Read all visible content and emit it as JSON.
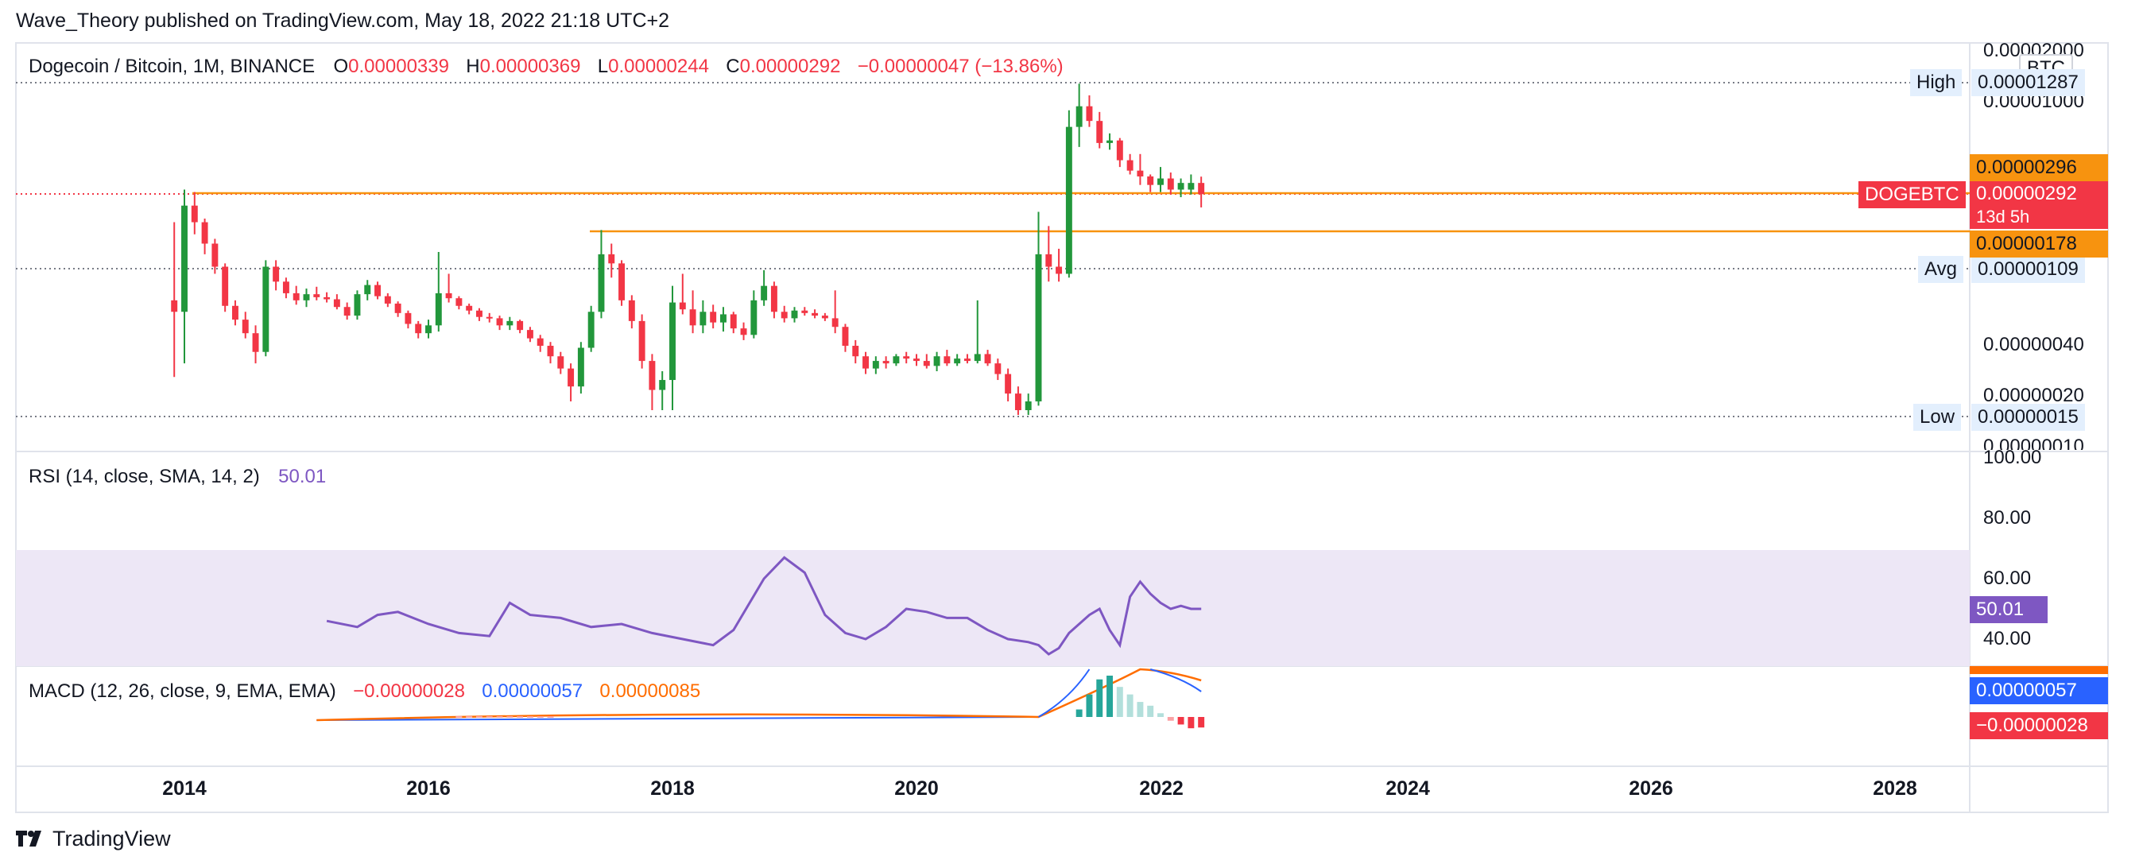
{
  "header": {
    "published": "Wave_Theory published on TradingView.com, May 18, 2022 21:18 UTC+2"
  },
  "main_legend": {
    "symbol": "Dogecoin / Bitcoin, 1M, BINANCE",
    "o_label": "O",
    "o_value": "0.00000339",
    "h_label": "H",
    "h_value": "0.00000369",
    "l_label": "L",
    "l_value": "0.00000244",
    "c_label": "C",
    "c_value": "0.00000292",
    "change": "−0.00000047 (−13.86%)"
  },
  "price_axis": {
    "currency": "BTC",
    "ticks": [
      "0.00002000",
      "0.00001000",
      "0.00000040",
      "0.00000020",
      "0.00000010"
    ],
    "high_label": "High",
    "high_value": "0.00001287",
    "avg_label": "Avg",
    "avg_value": "0.00000109",
    "low_label": "Low",
    "low_value": "0.00000015",
    "level_upper": "0.00000296",
    "level_lower": "0.00000178",
    "symbol_tag": "DOGEBTC",
    "last_price": "0.00000292",
    "countdown": "13d 5h"
  },
  "rsi": {
    "label": "RSI (14, close, SMA, 14, 2)",
    "value": "50.01",
    "ticks": [
      "100.00",
      "80.00",
      "60.00",
      "40.00"
    ]
  },
  "macd": {
    "label": "MACD (12, 26, close, 9, EMA, EMA)",
    "hist_value": "−0.00000028",
    "macd_value": "0.00000057",
    "signal_value": "0.00000085",
    "axis_macd": "0.00000057",
    "axis_hist": "−0.00000028"
  },
  "x_axis": {
    "ticks": [
      "2014",
      "2016",
      "2018",
      "2020",
      "2022",
      "2024",
      "2026",
      "2028"
    ]
  },
  "footer": {
    "brand": "TradingView"
  },
  "colors": {
    "up": "#22973b",
    "down": "#f23645",
    "orange": "#f7930f",
    "rsi": "#7e57c2",
    "macd": "#2962ff",
    "signal": "#ff6d00",
    "rsi_band": "#ede7f6"
  },
  "chart_data": {
    "type": "candlestick",
    "interval": "1M",
    "y_scale": "log",
    "x_range": [
      "2013-12",
      "2028-12"
    ],
    "ylim": [
      1e-07,
      2e-05
    ],
    "levels": [
      2.96e-06,
      1.78e-06
    ],
    "candles": [
      {
        "date": "2013-12",
        "o": 7e-07,
        "h": 2e-06,
        "l": 2.5e-07,
        "c": 6e-07
      },
      {
        "date": "2014-01",
        "o": 6e-07,
        "h": 3.1e-06,
        "l": 3e-07,
        "c": 2.5e-06
      },
      {
        "date": "2014-02",
        "o": 2.5e-06,
        "h": 3e-06,
        "l": 1.7e-06,
        "c": 2e-06
      },
      {
        "date": "2014-03",
        "o": 2e-06,
        "h": 2.1e-06,
        "l": 1.3e-06,
        "c": 1.5e-06
      },
      {
        "date": "2014-04",
        "o": 1.5e-06,
        "h": 1.6e-06,
        "l": 1e-06,
        "c": 1.1e-06
      },
      {
        "date": "2014-05",
        "o": 1.1e-06,
        "h": 1.15e-06,
        "l": 6e-07,
        "c": 6.5e-07
      },
      {
        "date": "2014-06",
        "o": 6.5e-07,
        "h": 7e-07,
        "l": 5e-07,
        "c": 5.4e-07
      },
      {
        "date": "2014-07",
        "o": 5.4e-07,
        "h": 6e-07,
        "l": 4.2e-07,
        "c": 4.5e-07
      },
      {
        "date": "2014-08",
        "o": 4.5e-07,
        "h": 5e-07,
        "l": 3e-07,
        "c": 3.5e-07
      },
      {
        "date": "2014-09",
        "o": 3.5e-07,
        "h": 1.2e-06,
        "l": 3.3e-07,
        "c": 1.1e-06
      },
      {
        "date": "2014-10",
        "o": 1.1e-06,
        "h": 1.2e-06,
        "l": 8e-07,
        "c": 9e-07
      },
      {
        "date": "2014-11",
        "o": 9e-07,
        "h": 9.5e-07,
        "l": 7.2e-07,
        "c": 7.7e-07
      },
      {
        "date": "2014-12",
        "o": 7.7e-07,
        "h": 8.5e-07,
        "l": 6.6e-07,
        "c": 7e-07
      },
      {
        "date": "2015-01",
        "o": 7e-07,
        "h": 8.2e-07,
        "l": 6.4e-07,
        "c": 7.6e-07
      },
      {
        "date": "2015-02",
        "o": 7.6e-07,
        "h": 8.4e-07,
        "l": 7e-07,
        "c": 7.3e-07
      },
      {
        "date": "2015-03",
        "o": 7.3e-07,
        "h": 7.8e-07,
        "l": 6.8e-07,
        "c": 7.1e-07
      },
      {
        "date": "2015-04",
        "o": 7.1e-07,
        "h": 7.6e-07,
        "l": 6.2e-07,
        "c": 6.4e-07
      },
      {
        "date": "2015-05",
        "o": 6.4e-07,
        "h": 6.8e-07,
        "l": 5.4e-07,
        "c": 5.7e-07
      },
      {
        "date": "2015-06",
        "o": 5.7e-07,
        "h": 8e-07,
        "l": 5.4e-07,
        "c": 7.6e-07
      },
      {
        "date": "2015-07",
        "o": 7.6e-07,
        "h": 9.2e-07,
        "l": 7e-07,
        "c": 8.6e-07
      },
      {
        "date": "2015-08",
        "o": 8.6e-07,
        "h": 9e-07,
        "l": 7.1e-07,
        "c": 7.4e-07
      },
      {
        "date": "2015-09",
        "o": 7.4e-07,
        "h": 7.7e-07,
        "l": 6.4e-07,
        "c": 6.7e-07
      },
      {
        "date": "2015-10",
        "o": 6.7e-07,
        "h": 6.9e-07,
        "l": 5.6e-07,
        "c": 5.9e-07
      },
      {
        "date": "2015-11",
        "o": 5.9e-07,
        "h": 6.1e-07,
        "l": 4.8e-07,
        "c": 5.1e-07
      },
      {
        "date": "2015-12",
        "o": 5.1e-07,
        "h": 5.3e-07,
        "l": 4.2e-07,
        "c": 4.5e-07
      },
      {
        "date": "2016-01",
        "o": 4.5e-07,
        "h": 5.4e-07,
        "l": 4.2e-07,
        "c": 5e-07
      },
      {
        "date": "2016-02",
        "o": 5e-07,
        "h": 1.34e-06,
        "l": 4.6e-07,
        "c": 7.7e-07
      },
      {
        "date": "2016-03",
        "o": 7.7e-07,
        "h": 1e-06,
        "l": 6.8e-07,
        "c": 7.2e-07
      },
      {
        "date": "2016-04",
        "o": 7.2e-07,
        "h": 7.4e-07,
        "l": 6.2e-07,
        "c": 6.5e-07
      },
      {
        "date": "2016-05",
        "o": 6.5e-07,
        "h": 6.7e-07,
        "l": 5.8e-07,
        "c": 6.1e-07
      },
      {
        "date": "2016-06",
        "o": 6.1e-07,
        "h": 6.3e-07,
        "l": 5.3e-07,
        "c": 5.6e-07
      },
      {
        "date": "2016-07",
        "o": 5.6e-07,
        "h": 5.9e-07,
        "l": 5.2e-07,
        "c": 5.5e-07
      },
      {
        "date": "2016-08",
        "o": 5.5e-07,
        "h": 5.7e-07,
        "l": 4.7e-07,
        "c": 5e-07
      },
      {
        "date": "2016-09",
        "o": 5e-07,
        "h": 5.6e-07,
        "l": 4.7e-07,
        "c": 5.3e-07
      },
      {
        "date": "2016-10",
        "o": 5.3e-07,
        "h": 5.4e-07,
        "l": 4.5e-07,
        "c": 4.7e-07
      },
      {
        "date": "2016-11",
        "o": 4.7e-07,
        "h": 4.9e-07,
        "l": 4e-07,
        "c": 4.2e-07
      },
      {
        "date": "2016-12",
        "o": 4.2e-07,
        "h": 4.4e-07,
        "l": 3.5e-07,
        "c": 3.8e-07
      },
      {
        "date": "2017-01",
        "o": 3.8e-07,
        "h": 4e-07,
        "l": 3e-07,
        "c": 3.3e-07
      },
      {
        "date": "2017-02",
        "o": 3.3e-07,
        "h": 3.5e-07,
        "l": 2.6e-07,
        "c": 2.8e-07
      },
      {
        "date": "2017-03",
        "o": 2.8e-07,
        "h": 3e-07,
        "l": 1.8e-07,
        "c": 2.2e-07
      },
      {
        "date": "2017-04",
        "o": 2.2e-07,
        "h": 4e-07,
        "l": 2e-07,
        "c": 3.7e-07
      },
      {
        "date": "2017-05",
        "o": 3.7e-07,
        "h": 6.5e-07,
        "l": 3.5e-07,
        "c": 6e-07
      },
      {
        "date": "2017-06",
        "o": 6e-07,
        "h": 1.8e-06,
        "l": 5.5e-07,
        "c": 1.3e-06
      },
      {
        "date": "2017-07",
        "o": 1.3e-06,
        "h": 1.5e-06,
        "l": 9.5e-07,
        "c": 1.15e-06
      },
      {
        "date": "2017-08",
        "o": 1.15e-06,
        "h": 1.2e-06,
        "l": 6.5e-07,
        "c": 7e-07
      },
      {
        "date": "2017-09",
        "o": 7e-07,
        "h": 7.5e-07,
        "l": 4.8e-07,
        "c": 5.3e-07
      },
      {
        "date": "2017-10",
        "o": 5.3e-07,
        "h": 5.8e-07,
        "l": 2.8e-07,
        "c": 3.1e-07
      },
      {
        "date": "2017-11",
        "o": 3.1e-07,
        "h": 3.4e-07,
        "l": 1.6e-07,
        "c": 2.1e-07
      },
      {
        "date": "2017-12",
        "o": 2.1e-07,
        "h": 2.7e-07,
        "l": 1.6e-07,
        "c": 2.4e-07
      },
      {
        "date": "2018-01",
        "o": 2.4e-07,
        "h": 8.5e-07,
        "l": 1.6e-07,
        "c": 6.8e-07
      },
      {
        "date": "2018-02",
        "o": 6.8e-07,
        "h": 1e-06,
        "l": 5.8e-07,
        "c": 6.2e-07
      },
      {
        "date": "2018-03",
        "o": 6.2e-07,
        "h": 8e-07,
        "l": 4.5e-07,
        "c": 5e-07
      },
      {
        "date": "2018-04",
        "o": 5e-07,
        "h": 7e-07,
        "l": 4.5e-07,
        "c": 6e-07
      },
      {
        "date": "2018-05",
        "o": 6e-07,
        "h": 6.6e-07,
        "l": 4.8e-07,
        "c": 5.2e-07
      },
      {
        "date": "2018-06",
        "o": 5.2e-07,
        "h": 6.4e-07,
        "l": 4.6e-07,
        "c": 5.8e-07
      },
      {
        "date": "2018-07",
        "o": 5.8e-07,
        "h": 6e-07,
        "l": 4.5e-07,
        "c": 4.8e-07
      },
      {
        "date": "2018-08",
        "o": 4.8e-07,
        "h": 5.2e-07,
        "l": 4.1e-07,
        "c": 4.4e-07
      },
      {
        "date": "2018-09",
        "o": 4.4e-07,
        "h": 8e-07,
        "l": 4.2e-07,
        "c": 7e-07
      },
      {
        "date": "2018-10",
        "o": 7e-07,
        "h": 1.05e-06,
        "l": 6.5e-07,
        "c": 8.5e-07
      },
      {
        "date": "2018-11",
        "o": 8.5e-07,
        "h": 9e-07,
        "l": 5.5e-07,
        "c": 6e-07
      },
      {
        "date": "2018-12",
        "o": 6e-07,
        "h": 6.5e-07,
        "l": 5.2e-07,
        "c": 5.5e-07
      },
      {
        "date": "2019-01",
        "o": 5.5e-07,
        "h": 6.4e-07,
        "l": 5.2e-07,
        "c": 6.1e-07
      },
      {
        "date": "2019-02",
        "o": 6.1e-07,
        "h": 6.4e-07,
        "l": 5.7e-07,
        "c": 5.9e-07
      },
      {
        "date": "2019-03",
        "o": 5.9e-07,
        "h": 6.2e-07,
        "l": 5.5e-07,
        "c": 5.7e-07
      },
      {
        "date": "2019-04",
        "o": 5.7e-07,
        "h": 5.9e-07,
        "l": 5.3e-07,
        "c": 5.5e-07
      },
      {
        "date": "2019-05",
        "o": 5.5e-07,
        "h": 8e-07,
        "l": 4.5e-07,
        "c": 4.9e-07
      },
      {
        "date": "2019-06",
        "o": 4.9e-07,
        "h": 5.1e-07,
        "l": 3.5e-07,
        "c": 3.8e-07
      },
      {
        "date": "2019-07",
        "o": 3.8e-07,
        "h": 4.1e-07,
        "l": 3e-07,
        "c": 3.3e-07
      },
      {
        "date": "2019-08",
        "o": 3.3e-07,
        "h": 3.5e-07,
        "l": 2.6e-07,
        "c": 2.8e-07
      },
      {
        "date": "2019-09",
        "o": 2.8e-07,
        "h": 3.3e-07,
        "l": 2.6e-07,
        "c": 3.1e-07
      },
      {
        "date": "2019-10",
        "o": 3.1e-07,
        "h": 3.3e-07,
        "l": 2.8e-07,
        "c": 3e-07
      },
      {
        "date": "2019-11",
        "o": 3e-07,
        "h": 3.4e-07,
        "l": 2.9e-07,
        "c": 3.3e-07
      },
      {
        "date": "2019-12",
        "o": 3.3e-07,
        "h": 3.5e-07,
        "l": 3e-07,
        "c": 3.2e-07
      },
      {
        "date": "2020-01",
        "o": 3.2e-07,
        "h": 3.4e-07,
        "l": 2.9e-07,
        "c": 3.1e-07
      },
      {
        "date": "2020-02",
        "o": 3.1e-07,
        "h": 3.4e-07,
        "l": 2.8e-07,
        "c": 2.9e-07
      },
      {
        "date": "2020-03",
        "o": 2.9e-07,
        "h": 3.5e-07,
        "l": 2.7e-07,
        "c": 3.3e-07
      },
      {
        "date": "2020-04",
        "o": 3.3e-07,
        "h": 3.6e-07,
        "l": 2.9e-07,
        "c": 3e-07
      },
      {
        "date": "2020-05",
        "o": 3e-07,
        "h": 3.4e-07,
        "l": 2.9e-07,
        "c": 3.2e-07
      },
      {
        "date": "2020-06",
        "o": 3.2e-07,
        "h": 3.4e-07,
        "l": 3e-07,
        "c": 3.1e-07
      },
      {
        "date": "2020-07",
        "o": 3.1e-07,
        "h": 7e-07,
        "l": 3e-07,
        "c": 3.4e-07
      },
      {
        "date": "2020-08",
        "o": 3.4e-07,
        "h": 3.6e-07,
        "l": 2.9e-07,
        "c": 3e-07
      },
      {
        "date": "2020-09",
        "o": 3e-07,
        "h": 3.2e-07,
        "l": 2.4e-07,
        "c": 2.6e-07
      },
      {
        "date": "2020-10",
        "o": 2.6e-07,
        "h": 2.8e-07,
        "l": 1.8e-07,
        "c": 2e-07
      },
      {
        "date": "2020-11",
        "o": 2e-07,
        "h": 2.2e-07,
        "l": 1.5e-07,
        "c": 1.6e-07
      },
      {
        "date": "2020-12",
        "o": 1.6e-07,
        "h": 2e-07,
        "l": 1.5e-07,
        "c": 1.8e-07
      },
      {
        "date": "2021-01",
        "o": 1.8e-07,
        "h": 2.3e-06,
        "l": 1.7e-07,
        "c": 1.3e-06
      },
      {
        "date": "2021-02",
        "o": 1.3e-06,
        "h": 1.9e-06,
        "l": 9e-07,
        "c": 1.1e-06
      },
      {
        "date": "2021-03",
        "o": 1.1e-06,
        "h": 1.4e-06,
        "l": 9e-07,
        "c": 1e-06
      },
      {
        "date": "2021-04",
        "o": 1e-06,
        "h": 9e-06,
        "l": 9.5e-07,
        "c": 7.2e-06
      },
      {
        "date": "2021-05",
        "o": 7.2e-06,
        "h": 1.287e-05,
        "l": 5.5e-06,
        "c": 9.5e-06
      },
      {
        "date": "2021-06",
        "o": 9.5e-06,
        "h": 1.1e-05,
        "l": 7.2e-06,
        "c": 7.8e-06
      },
      {
        "date": "2021-07",
        "o": 7.8e-06,
        "h": 8.8e-06,
        "l": 5.4e-06,
        "c": 5.8e-06
      },
      {
        "date": "2021-08",
        "o": 5.8e-06,
        "h": 6.6e-06,
        "l": 5.3e-06,
        "c": 6e-06
      },
      {
        "date": "2021-09",
        "o": 6e-06,
        "h": 6.2e-06,
        "l": 4.2e-06,
        "c": 4.6e-06
      },
      {
        "date": "2021-10",
        "o": 4.6e-06,
        "h": 5e-06,
        "l": 3.8e-06,
        "c": 4e-06
      },
      {
        "date": "2021-11",
        "o": 4e-06,
        "h": 5e-06,
        "l": 3.3e-06,
        "c": 3.7e-06
      },
      {
        "date": "2021-12",
        "o": 3.7e-06,
        "h": 3.8e-06,
        "l": 3e-06,
        "c": 3.3e-06
      },
      {
        "date": "2022-01",
        "o": 3.3e-06,
        "h": 4.2e-06,
        "l": 3e-06,
        "c": 3.6e-06
      },
      {
        "date": "2022-02",
        "o": 3.6e-06,
        "h": 3.9e-06,
        "l": 2.9e-06,
        "c": 3.1e-06
      },
      {
        "date": "2022-03",
        "o": 3.1e-06,
        "h": 3.6e-06,
        "l": 2.8e-06,
        "c": 3.39e-06
      },
      {
        "date": "2022-04",
        "o": 3.1e-06,
        "h": 3.8e-06,
        "l": 2.9e-06,
        "c": 3.39e-06
      },
      {
        "date": "2022-05",
        "o": 3.39e-06,
        "h": 3.69e-06,
        "l": 2.44e-06,
        "c": 2.92e-06
      }
    ],
    "rsi_series": [
      {
        "date": "2015-03",
        "v": 46
      },
      {
        "date": "2015-06",
        "v": 44
      },
      {
        "date": "2015-08",
        "v": 48
      },
      {
        "date": "2015-10",
        "v": 49
      },
      {
        "date": "2016-01",
        "v": 45
      },
      {
        "date": "2016-04",
        "v": 42
      },
      {
        "date": "2016-07",
        "v": 41
      },
      {
        "date": "2016-09",
        "v": 52
      },
      {
        "date": "2016-11",
        "v": 48
      },
      {
        "date": "2017-02",
        "v": 47
      },
      {
        "date": "2017-05",
        "v": 44
      },
      {
        "date": "2017-08",
        "v": 45
      },
      {
        "date": "2017-11",
        "v": 42
      },
      {
        "date": "2018-02",
        "v": 40
      },
      {
        "date": "2018-05",
        "v": 38
      },
      {
        "date": "2018-07",
        "v": 43
      },
      {
        "date": "2018-10",
        "v": 60
      },
      {
        "date": "2018-12",
        "v": 67
      },
      {
        "date": "2019-02",
        "v": 62
      },
      {
        "date": "2019-04",
        "v": 48
      },
      {
        "date": "2019-06",
        "v": 42
      },
      {
        "date": "2019-08",
        "v": 40
      },
      {
        "date": "2019-10",
        "v": 44
      },
      {
        "date": "2019-12",
        "v": 50
      },
      {
        "date": "2020-02",
        "v": 49
      },
      {
        "date": "2020-04",
        "v": 47
      },
      {
        "date": "2020-06",
        "v": 47
      },
      {
        "date": "2020-08",
        "v": 43
      },
      {
        "date": "2020-10",
        "v": 40
      },
      {
        "date": "2020-12",
        "v": 39
      },
      {
        "date": "2021-01",
        "v": 38
      },
      {
        "date": "2021-02",
        "v": 35
      },
      {
        "date": "2021-03",
        "v": 37
      },
      {
        "date": "2021-04",
        "v": 42
      },
      {
        "date": "2021-05",
        "v": 45
      },
      {
        "date": "2021-06",
        "v": 48
      },
      {
        "date": "2021-07",
        "v": 50
      },
      {
        "date": "2021-08",
        "v": 43
      },
      {
        "date": "2021-09",
        "v": 38
      },
      {
        "date": "2021-10",
        "v": 54
      },
      {
        "date": "2021-11",
        "v": 59
      },
      {
        "date": "2021-12",
        "v": 55
      },
      {
        "date": "2022-01",
        "v": 52
      },
      {
        "date": "2022-02",
        "v": 50
      },
      {
        "date": "2022-03",
        "v": 51
      },
      {
        "date": "2022-04",
        "v": 50
      },
      {
        "date": "2022-05",
        "v": 50.01
      }
    ],
    "macd_histogram": [
      2e-07,
      6e-07,
      1e-06,
      1.1e-06,
      8e-07,
      6e-07,
      4e-07,
      3e-07,
      1e-07,
      -1e-07,
      -2e-07,
      -3e-07,
      -2.8e-07
    ],
    "macd_last": 5.7e-07,
    "signal_last": 8.5e-07,
    "histogram_last": -2.8e-07
  }
}
